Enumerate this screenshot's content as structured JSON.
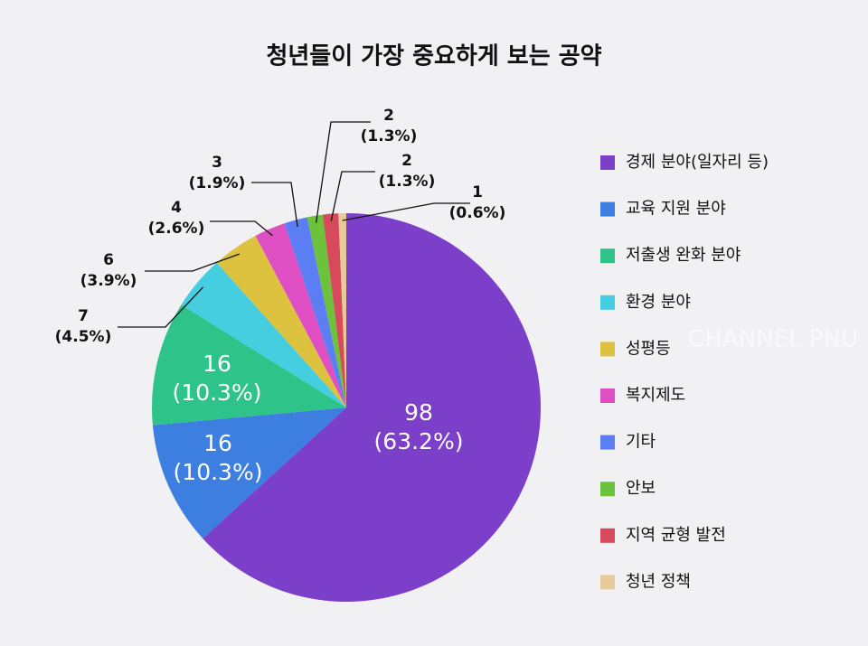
{
  "chart_data": {
    "type": "pie",
    "title": "청년들이 가장 중요하게 보는 공약",
    "categories": [
      "경제 분야(일자리 등)",
      "교육 지원 분야",
      "저출생 완화 분야",
      "환경 분야",
      "성평등",
      "복지제도",
      "기타",
      "안보",
      "지역 균형 발전",
      "청년 정책"
    ],
    "values": [
      98,
      16,
      16,
      7,
      6,
      4,
      3,
      2,
      2,
      1
    ],
    "percent_labels": [
      "(63.2%)",
      "(10.3%)",
      "(10.3%)",
      "(4.5%)",
      "(3.9%)",
      "(2.6%)",
      "(1.9%)",
      "(1.3%)",
      "(1.3%)",
      "(0.6%)"
    ],
    "colors": [
      "#7b3fc9",
      "#3d7fe0",
      "#2ec489",
      "#45cde0",
      "#dcc23e",
      "#dd4fc3",
      "#5b7ef5",
      "#6cc23a",
      "#d64a5c",
      "#e8c99a"
    ],
    "legend": "right",
    "watermark": "CHANNEL PNU"
  }
}
